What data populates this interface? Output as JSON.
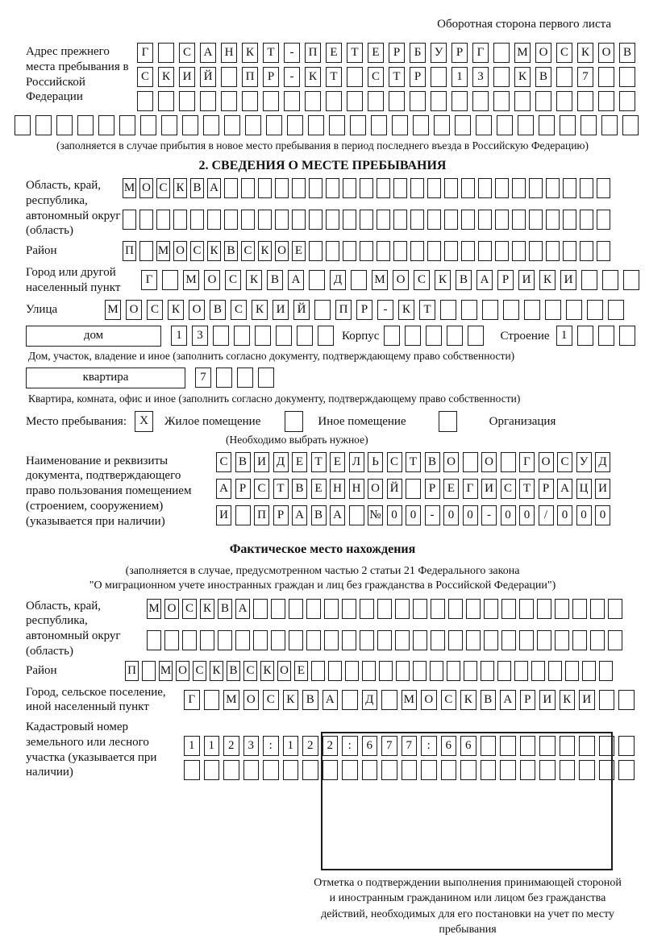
{
  "page": {
    "header_note": "Оборотная сторона первого листа"
  },
  "prev_address": {
    "label": "Адрес прежнего места пребывания в Российской Федерации",
    "rows": [
      [
        "Г",
        "",
        "С",
        "А",
        "Н",
        "К",
        "Т",
        "-",
        "П",
        "Е",
        "Т",
        "Е",
        "Р",
        "Б",
        "У",
        "Р",
        "Г",
        "",
        "М",
        "О",
        "С",
        "К",
        "О",
        "В"
      ],
      [
        "С",
        "К",
        "И",
        "Й",
        "",
        "П",
        "Р",
        "-",
        "К",
        "Т",
        "",
        "С",
        "Т",
        "Р",
        "",
        "1",
        "3",
        "",
        "К",
        "В",
        "",
        "7",
        "",
        ""
      ],
      [
        "",
        "",
        "",
        "",
        "",
        "",
        "",
        "",
        "",
        "",
        "",
        "",
        "",
        "",
        "",
        "",
        "",
        "",
        "",
        "",
        "",
        "",
        "",
        ""
      ]
    ],
    "full_row": [
      "",
      "",
      "",
      "",
      "",
      "",
      "",
      "",
      "",
      "",
      "",
      "",
      "",
      "",
      "",
      "",
      "",
      "",
      "",
      "",
      "",
      "",
      "",
      "",
      "",
      "",
      "",
      "",
      "",
      ""
    ],
    "caption": "(заполняется в случае прибытия в новое место пребывания в период последнего въезда в Российскую Федерацию)"
  },
  "section2": {
    "title": "2. СВЕДЕНИЯ О МЕСТЕ ПРЕБЫВАНИЯ",
    "region": {
      "label": "Область, край, республика, автономный округ (область)",
      "rows": [
        [
          "М",
          "О",
          "С",
          "К",
          "В",
          "А",
          "",
          "",
          "",
          "",
          "",
          "",
          "",
          "",
          "",
          "",
          "",
          "",
          "",
          "",
          "",
          "",
          "",
          "",
          "",
          "",
          "",
          "",
          ""
        ],
        [
          "",
          "",
          "",
          "",
          "",
          "",
          "",
          "",
          "",
          "",
          "",
          "",
          "",
          "",
          "",
          "",
          "",
          "",
          "",
          "",
          "",
          "",
          "",
          "",
          "",
          "",
          "",
          "",
          ""
        ]
      ]
    },
    "district": {
      "label": "Район",
      "row": [
        "П",
        "",
        "М",
        "О",
        "С",
        "К",
        "В",
        "С",
        "К",
        "О",
        "Е",
        "",
        "",
        "",
        "",
        "",
        "",
        "",
        "",
        "",
        "",
        "",
        "",
        "",
        "",
        "",
        "",
        "",
        ""
      ]
    },
    "city": {
      "label": "Город или другой населенный пункт",
      "row": [
        "Г",
        "",
        "М",
        "О",
        "С",
        "К",
        "В",
        "А",
        "",
        "Д",
        "",
        "М",
        "О",
        "С",
        "К",
        "В",
        "А",
        "Р",
        "И",
        "К",
        "И",
        "",
        "",
        ""
      ]
    },
    "street": {
      "label": "Улица",
      "row": [
        "М",
        "О",
        "С",
        "К",
        "О",
        "В",
        "С",
        "К",
        "И",
        "Й",
        "",
        "П",
        "Р",
        "-",
        "К",
        "Т",
        "",
        "",
        "",
        "",
        "",
        "",
        "",
        "",
        ""
      ]
    },
    "house": {
      "box_label": "дом",
      "cells": [
        "1",
        "3",
        "",
        "",
        "",
        "",
        "",
        ""
      ],
      "korpus_label": "Корпус",
      "korpus_cells": [
        "",
        "",
        "",
        "",
        ""
      ],
      "stroenie_label": "Строение",
      "stroenie_cells": [
        "1",
        "",
        "",
        ""
      ]
    },
    "house_caption": "Дом, участок, владение и иное (заполнить согласно документу, подтверждающему право собственности)",
    "apartment": {
      "box_label": "квартира",
      "cells": [
        "7",
        "",
        "",
        ""
      ]
    },
    "apartment_caption": "Квартира, комната, офис и иное (заполнить согласно документу, подтверждающему право собственности)",
    "stay_type": {
      "label": "Место пребывания:",
      "options": [
        {
          "label": "Жилое помещение",
          "mark": "X"
        },
        {
          "label": "Иное помещение",
          "mark": ""
        },
        {
          "label": "Организация",
          "mark": ""
        }
      ],
      "hint": "(Необходимо выбрать нужное)"
    },
    "document": {
      "label": "Наименование и реквизиты документа, подтверждающего право пользования помещением (строением, сооружением) (указывается при наличии)",
      "rows": [
        [
          "С",
          "В",
          "И",
          "Д",
          "Е",
          "Т",
          "Е",
          "Л",
          "Ь",
          "С",
          "Т",
          "В",
          "О",
          "",
          "О",
          "",
          "Г",
          "О",
          "С",
          "У",
          "Д"
        ],
        [
          "А",
          "Р",
          "С",
          "Т",
          "В",
          "Е",
          "Н",
          "Н",
          "О",
          "Й",
          "",
          "Р",
          "Е",
          "Г",
          "И",
          "С",
          "Т",
          "Р",
          "А",
          "Ц",
          "И"
        ],
        [
          "И",
          "",
          "П",
          "Р",
          "А",
          "В",
          "А",
          "",
          "№",
          "0",
          "0",
          "-",
          "0",
          "0",
          "-",
          "0",
          "0",
          "/",
          "0",
          "0",
          "0"
        ]
      ]
    }
  },
  "actual_location": {
    "title": "Фактическое место нахождения",
    "caption_line1": "(заполняется в случае, предусмотренном частью 2 статьи 21 Федерального закона",
    "caption_line2": "\"О миграционном учете иностранных граждан и лиц без гражданства в Российской Федерации\")",
    "region": {
      "label": "Область, край, республика, автономный округ (область)",
      "rows": [
        [
          "М",
          "О",
          "С",
          "К",
          "В",
          "А",
          "",
          "",
          "",
          "",
          "",
          "",
          "",
          "",
          "",
          "",
          "",
          "",
          "",
          "",
          "",
          "",
          "",
          "",
          "",
          "",
          ""
        ],
        [
          "",
          "",
          "",
          "",
          "",
          "",
          "",
          "",
          "",
          "",
          "",
          "",
          "",
          "",
          "",
          "",
          "",
          "",
          "",
          "",
          "",
          "",
          "",
          "",
          "",
          "",
          ""
        ]
      ]
    },
    "district": {
      "label": "Район",
      "row": [
        "П",
        "",
        "М",
        "О",
        "С",
        "К",
        "В",
        "С",
        "К",
        "О",
        "Е",
        "",
        "",
        "",
        "",
        "",
        "",
        "",
        "",
        "",
        "",
        "",
        "",
        "",
        "",
        "",
        "",
        "",
        ""
      ]
    },
    "city": {
      "label": "Город, сельское поселение, иной населенный пункт",
      "row": [
        "Г",
        "",
        "М",
        "О",
        "С",
        "К",
        "В",
        "А",
        "",
        "Д",
        "",
        "М",
        "О",
        "С",
        "К",
        "В",
        "А",
        "Р",
        "И",
        "К",
        "И",
        "",
        ""
      ]
    },
    "cadastral": {
      "label": "Кадастровый номер земельного или лесного участка (указывается при наличии)",
      "rows": [
        [
          "1",
          "1",
          "2",
          "3",
          ":",
          "1",
          "2",
          "2",
          ":",
          "6",
          "7",
          "7",
          ":",
          "6",
          "6",
          "",
          "",
          "",
          "",
          "",
          "",
          "",
          ""
        ],
        [
          "",
          "",
          "",
          "",
          "",
          "",
          "",
          "",
          "",
          "",
          "",
          "",
          "",
          "",
          "",
          "",
          "",
          "",
          "",
          "",
          "",
          "",
          ""
        ]
      ]
    }
  },
  "stamp": {
    "caption": "Отметка о подтверждении выполнения принимающей стороной и иностранным гражданином или лицом без гражданства действий, необходимых для его постановки на учет по месту пребывания"
  }
}
